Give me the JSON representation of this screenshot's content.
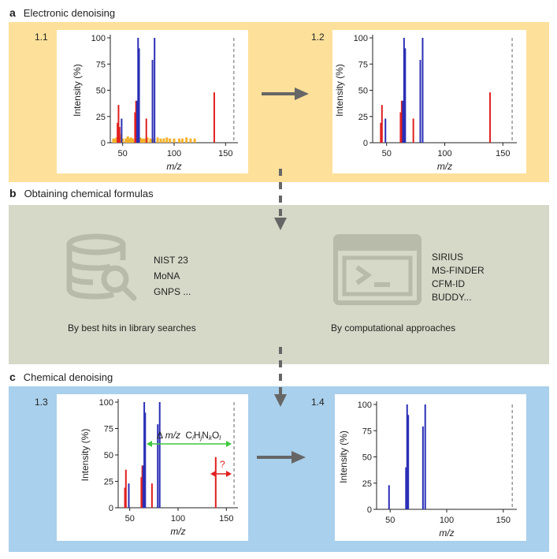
{
  "sections": {
    "a": {
      "letter": "a",
      "title": "Electronic denoising"
    },
    "b": {
      "letter": "b",
      "title": "Obtaining chemical formulas"
    },
    "c": {
      "letter": "c",
      "title": "Chemical denoising"
    }
  },
  "library": {
    "items": [
      "NIST 23",
      "MoNA",
      "GNPS ..."
    ],
    "caption": "By best hits in library searches"
  },
  "computational": {
    "items": [
      "SIRIUS",
      "MS-FINDER",
      "CFM-ID",
      "BUDDY..."
    ],
    "caption": "By computational approaches"
  },
  "annotations": {
    "delta_prefix": "Δ",
    "delta_mz": "m/z",
    "formula_c": "C",
    "formula_h": "H",
    "formula_n": "N",
    "formula_o": "O",
    "sub_i": "i",
    "sub_j": "j",
    "sub_k": "k",
    "sub_l": "l",
    "question": "?"
  },
  "colors": {
    "blue": "#2b2fb5",
    "red": "#e02020",
    "orange": "#f4b22c",
    "green": "#3ec93e",
    "arrow_gray": "#666666",
    "dashed_gray": "#999999"
  },
  "chart_data": [
    {
      "id": "1.1",
      "type": "bar",
      "panel_label": "1.1",
      "xlabel": "m/z",
      "ylabel": "Intensity (%)",
      "xlim": [
        38,
        162
      ],
      "ylim": [
        0,
        100
      ],
      "xticks": [
        50,
        100,
        150
      ],
      "yticks": [
        0,
        25,
        50,
        75,
        100
      ],
      "precursor_mz": 158,
      "series": [
        {
          "color": "blue",
          "x": [
            49,
            64,
            65,
            66,
            79,
            81
          ],
          "y": [
            23,
            40,
            100,
            90,
            79,
            100
          ]
        },
        {
          "color": "red",
          "x": [
            45,
            46,
            47,
            62,
            63,
            73,
            139
          ],
          "y": [
            19,
            36,
            15,
            29,
            40,
            23,
            48
          ]
        },
        {
          "color": "orange",
          "x": [
            41,
            43,
            44,
            46,
            48,
            50,
            53,
            55,
            57,
            58,
            60,
            63,
            67,
            69,
            71,
            74,
            77,
            80,
            84,
            87,
            90,
            93,
            96,
            100,
            105,
            108,
            112,
            116,
            120
          ],
          "y": [
            4,
            4,
            5,
            11,
            8,
            4,
            4,
            6,
            4,
            5,
            4,
            6,
            5,
            4,
            4,
            5,
            4,
            4,
            5,
            4,
            4,
            5,
            4,
            4,
            4,
            4,
            5,
            4,
            4
          ]
        }
      ]
    },
    {
      "id": "1.2",
      "type": "bar",
      "panel_label": "1.2",
      "xlabel": "m/z",
      "ylabel": "Intensity (%)",
      "xlim": [
        38,
        162
      ],
      "ylim": [
        0,
        100
      ],
      "xticks": [
        50,
        100,
        150
      ],
      "yticks": [
        0,
        25,
        50,
        75,
        100
      ],
      "precursor_mz": 158,
      "series": [
        {
          "color": "blue",
          "x": [
            49,
            64,
            65,
            66,
            79,
            81
          ],
          "y": [
            23,
            40,
            100,
            90,
            79,
            100
          ]
        },
        {
          "color": "red",
          "x": [
            45,
            46,
            62,
            63,
            73,
            139
          ],
          "y": [
            19,
            36,
            29,
            40,
            23,
            48
          ]
        }
      ]
    },
    {
      "id": "1.3",
      "type": "bar",
      "panel_label": "1.3",
      "xlabel": "m/z",
      "ylabel": "Intensity (%)",
      "xlim": [
        38,
        162
      ],
      "ylim": [
        0,
        100
      ],
      "xticks": [
        50,
        100,
        150
      ],
      "yticks": [
        0,
        25,
        50,
        75,
        100
      ],
      "precursor_mz": 158,
      "series": [
        {
          "color": "blue",
          "x": [
            49,
            64,
            65,
            66,
            79,
            81
          ],
          "y": [
            23,
            40,
            100,
            90,
            79,
            100
          ]
        },
        {
          "color": "red",
          "x": [
            45,
            46,
            62,
            63,
            73,
            139
          ],
          "y": [
            19,
            36,
            29,
            40,
            23,
            48
          ]
        }
      ]
    },
    {
      "id": "1.4",
      "type": "bar",
      "panel_label": "1.4",
      "xlabel": "m/z",
      "ylabel": "Intensity (%)",
      "xlim": [
        38,
        162
      ],
      "ylim": [
        0,
        100
      ],
      "xticks": [
        50,
        100,
        150
      ],
      "yticks": [
        0,
        25,
        50,
        75,
        100
      ],
      "precursor_mz": 158,
      "series": [
        {
          "color": "blue",
          "x": [
            49,
            64,
            65,
            66,
            79,
            81
          ],
          "y": [
            23,
            40,
            100,
            90,
            79,
            100
          ]
        }
      ]
    }
  ]
}
